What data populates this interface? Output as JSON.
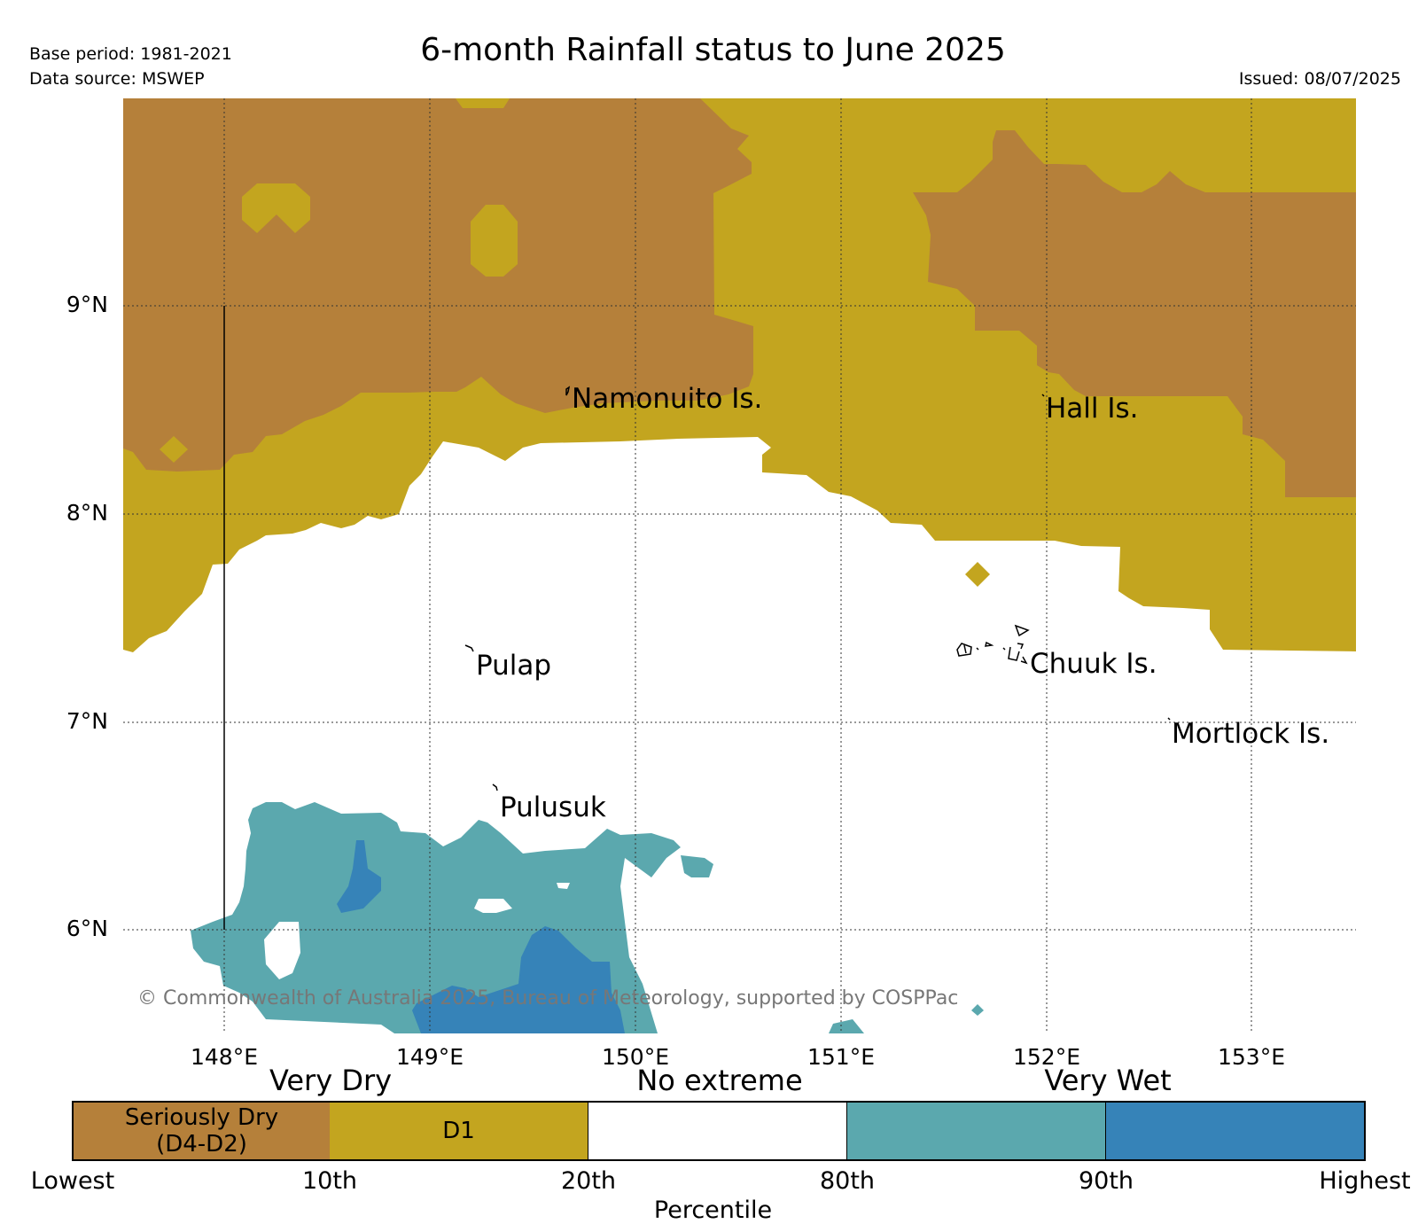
{
  "header": {
    "title": "6-month Rainfall status to June 2025",
    "base_period": "Base period: 1981-2021",
    "data_source": "Data source: MSWEP",
    "issued": "Issued: 08/07/2025"
  },
  "map": {
    "lat_labels": [
      "9°N",
      "8°N",
      "7°N",
      "6°N"
    ],
    "lon_labels": [
      "148°E",
      "149°E",
      "150°E",
      "151°E",
      "152°E",
      "153°E"
    ],
    "places": [
      "Namonuito Is.",
      "Hall Is.",
      "Pulap",
      "Chuuk Is.",
      "Mortlock Is.",
      "Pulusuk"
    ],
    "copyright": "© Commonwealth of Australia 2025, Bureau of Meteorology, supported by COSPPac",
    "colors": {
      "seriously_dry": "#b5803a",
      "d1": "#c3a51f",
      "no_extreme": "#ffffff",
      "wet_80": "#5ba8ae",
      "wet_90": "#3683b8"
    }
  },
  "legend": {
    "category_headers": [
      "Very Dry",
      "No extreme",
      "Very Wet"
    ],
    "boxes": [
      "Seriously Dry\n(D4-D2)",
      "D1",
      "",
      "",
      ""
    ],
    "percentiles": [
      "Lowest",
      "10th",
      "20th",
      "80th",
      "90th",
      "Highest"
    ],
    "title": "Percentile"
  }
}
